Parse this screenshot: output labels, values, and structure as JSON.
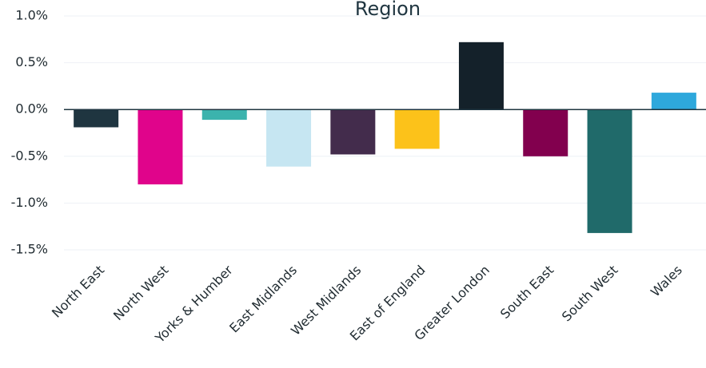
{
  "chart_data": {
    "type": "bar",
    "title": "Region",
    "categories": [
      "North East",
      "North West",
      "Yorks & Humber",
      "East Midlands",
      "West Midlands",
      "East of England",
      "Greater London",
      "South East",
      "South West",
      "Wales"
    ],
    "values": [
      -0.19,
      -0.8,
      -0.11,
      -0.61,
      -0.48,
      -0.42,
      0.72,
      -0.5,
      -1.32,
      0.18
    ],
    "colors": [
      "#1f3540",
      "#e0048b",
      "#3bb3ad",
      "#c6e6f2",
      "#432c4c",
      "#fcc21a",
      "#14212a",
      "#82004e",
      "#206a6a",
      "#2ea8dc"
    ],
    "ylim": [
      -1.5,
      1.0
    ],
    "yticks": [
      {
        "value": -1.5,
        "label": "-1.5%"
      },
      {
        "value": -1.0,
        "label": "-1.0%"
      },
      {
        "value": -0.5,
        "label": "-0.5%"
      },
      {
        "value": 0,
        "label": "0.0%"
      },
      {
        "value": 0.5,
        "label": "0.5%"
      },
      {
        "value": 1.0,
        "label": "1.0%"
      }
    ],
    "grid": true
  }
}
